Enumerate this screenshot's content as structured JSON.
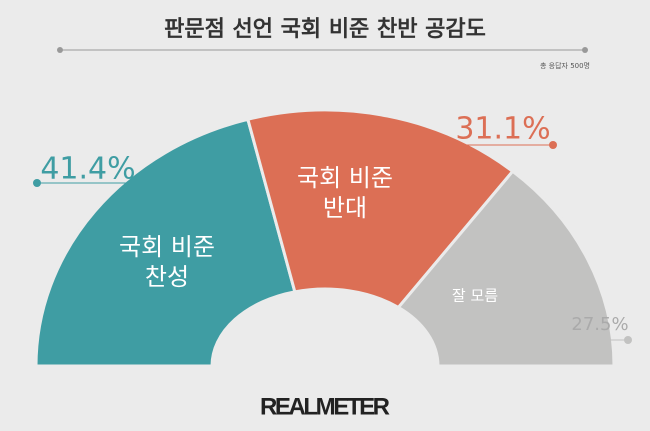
{
  "chart_data": {
    "type": "semi-donut",
    "title": "판문점 선언 국회 비준 찬반 공감도",
    "subtitle": "총 응답자 500명",
    "categories": [
      "국회 비준\n찬성",
      "국회 비준\n반대",
      "잘 모름"
    ],
    "values": [
      41.4,
      31.1,
      27.5
    ],
    "value_labels": [
      "41.4%",
      "31.1%",
      "27.5%"
    ],
    "colors": [
      "#3f9da3",
      "#dc6f55",
      "#c2c2c1"
    ],
    "footer": "REALMETER"
  }
}
